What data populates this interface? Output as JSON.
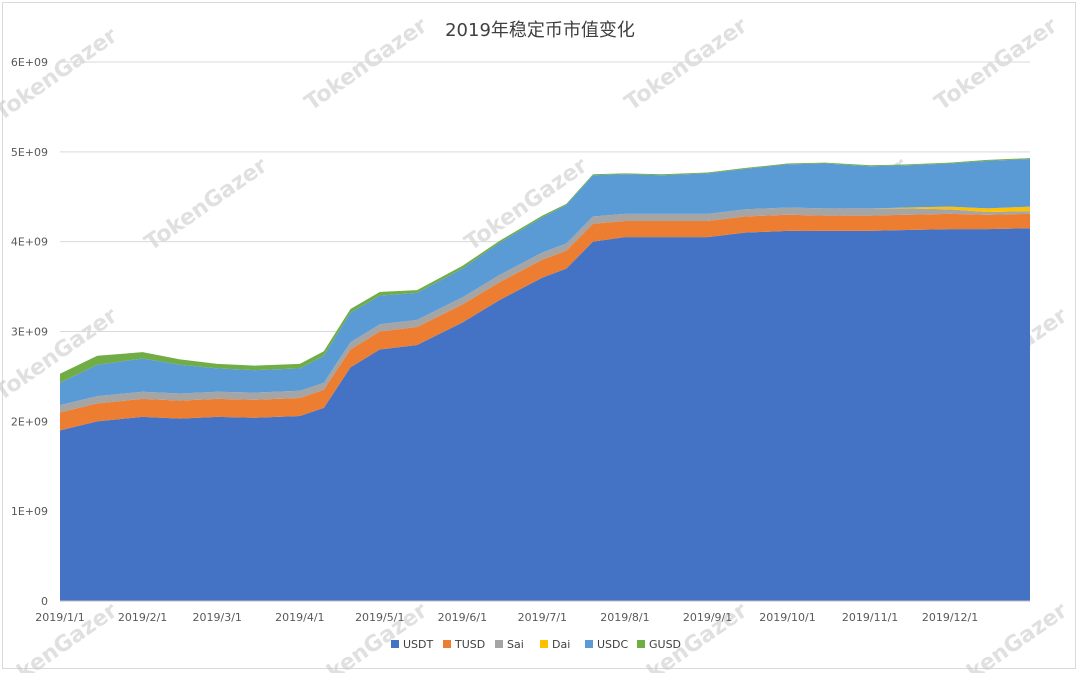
{
  "watermark": "TokenGazer",
  "chart_data": {
    "type": "area",
    "stacked": true,
    "title": "2019年稳定币市值变化",
    "xlabel": "",
    "ylabel": "",
    "ylim": [
      0,
      6000000000
    ],
    "y_ticks": [
      "0",
      "1E+09",
      "2E+09",
      "3E+09",
      "4E+09",
      "5E+09",
      "6E+09"
    ],
    "x_ticks": [
      "2019/1/1",
      "2019/2/1",
      "2019/3/1",
      "2019/4/1",
      "2019/5/1",
      "2019/6/1",
      "2019/7/1",
      "2019/8/1",
      "2019/9/1",
      "2019/10/1",
      "2019/11/1",
      "2019/12/1"
    ],
    "grid": "horizontal",
    "legend_position": "bottom",
    "x": [
      "2019/1/1",
      "2019/1/15",
      "2019/2/1",
      "2019/2/15",
      "2019/3/1",
      "2019/3/15",
      "2019/4/1",
      "2019/4/10",
      "2019/4/20",
      "2019/5/1",
      "2019/5/15",
      "2019/6/1",
      "2019/6/15",
      "2019/7/1",
      "2019/7/10",
      "2019/7/20",
      "2019/8/1",
      "2019/8/15",
      "2019/9/1",
      "2019/9/15",
      "2019/10/1",
      "2019/10/15",
      "2019/11/1",
      "2019/11/15",
      "2019/12/1",
      "2019/12/15",
      "2019/12/31"
    ],
    "series": [
      {
        "name": "USDT",
        "color": "#4472c4",
        "values": [
          1900000000.0,
          2000000000.0,
          2050000000.0,
          2030000000.0,
          2050000000.0,
          2040000000.0,
          2060000000.0,
          2150000000.0,
          2600000000.0,
          2800000000.0,
          2850000000.0,
          3100000000.0,
          3350000000.0,
          3600000000.0,
          3700000000.0,
          4000000000.0,
          4050000000.0,
          4050000000.0,
          4050000000.0,
          4100000000.0,
          4120000000.0,
          4120000000.0,
          4120000000.0,
          4130000000.0,
          4140000000.0,
          4140000000.0,
          4150000000.0
        ]
      },
      {
        "name": "TUSD",
        "color": "#ed7d31",
        "values": [
          200000000.0,
          200000000.0,
          200000000.0,
          200000000.0,
          200000000.0,
          200000000.0,
          200000000.0,
          200000000.0,
          200000000.0,
          200000000.0,
          200000000.0,
          200000000.0,
          200000000.0,
          200000000.0,
          200000000.0,
          200000000.0,
          180000000.0,
          180000000.0,
          180000000.0,
          180000000.0,
          180000000.0,
          170000000.0,
          170000000.0,
          170000000.0,
          170000000.0,
          160000000.0,
          160000000.0
        ]
      },
      {
        "name": "Sai",
        "color": "#a5a5a5",
        "values": [
          80000000.0,
          80000000.0,
          80000000.0,
          80000000.0,
          80000000.0,
          80000000.0,
          80000000.0,
          80000000.0,
          80000000.0,
          80000000.0,
          80000000.0,
          80000000.0,
          80000000.0,
          80000000.0,
          80000000.0,
          80000000.0,
          80000000.0,
          80000000.0,
          80000000.0,
          80000000.0,
          80000000.0,
          80000000.0,
          80000000.0,
          70000000.0,
          50000000.0,
          30000000.0,
          30000000.0
        ]
      },
      {
        "name": "Dai",
        "color": "#ffc000",
        "values": [
          0,
          0,
          0,
          0,
          0,
          0,
          0,
          0,
          0,
          0,
          0,
          0,
          0,
          0,
          0,
          0,
          0,
          0,
          0,
          0,
          0,
          0,
          0,
          10000000.0,
          30000000.0,
          40000000.0,
          50000000.0
        ]
      },
      {
        "name": "USDC",
        "color": "#5b9bd5",
        "values": [
          250000000.0,
          350000000.0,
          370000000.0,
          320000000.0,
          260000000.0,
          250000000.0,
          250000000.0,
          300000000.0,
          330000000.0,
          320000000.0,
          300000000.0,
          320000000.0,
          360000000.0,
          390000000.0,
          430000000.0,
          460000000.0,
          440000000.0,
          430000000.0,
          450000000.0,
          450000000.0,
          480000000.0,
          500000000.0,
          470000000.0,
          470000000.0,
          480000000.0,
          530000000.0,
          530000000.0
        ]
      },
      {
        "name": "GUSD",
        "color": "#70ad47",
        "values": [
          100000000.0,
          100000000.0,
          70000000.0,
          60000000.0,
          50000000.0,
          50000000.0,
          50000000.0,
          50000000.0,
          40000000.0,
          40000000.0,
          30000000.0,
          30000000.0,
          20000000.0,
          20000000.0,
          10000000.0,
          10000000.0,
          10000000.0,
          10000000.0,
          10000000.0,
          10000000.0,
          10000000.0,
          10000000.0,
          10000000.0,
          10000000.0,
          10000000.0,
          10000000.0,
          10000000.0
        ]
      }
    ]
  }
}
